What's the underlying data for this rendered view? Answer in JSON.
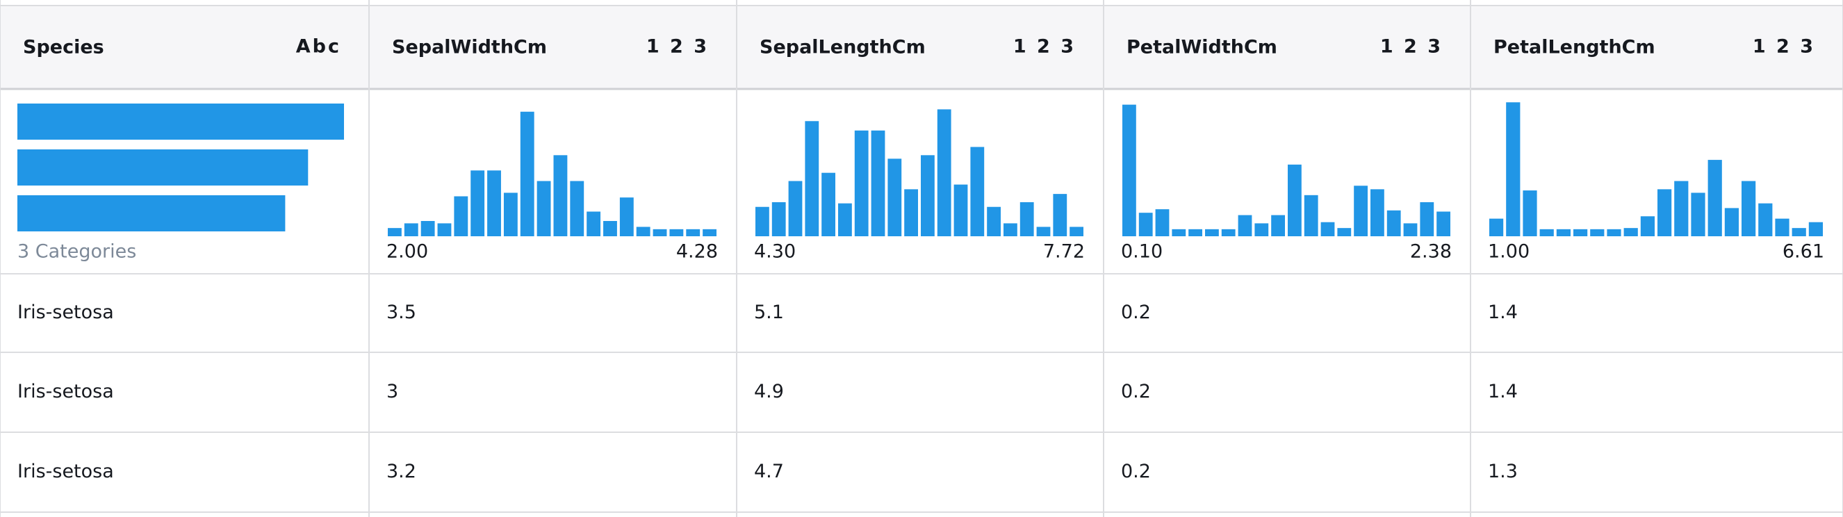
{
  "header": {
    "columns": [
      {
        "name": "Species",
        "type": "Abc"
      },
      {
        "name": "SepalWidthCm",
        "type": "1 2 3"
      },
      {
        "name": "SepalLengthCm",
        "type": "1 2 3"
      },
      {
        "name": "PetalWidthCm",
        "type": "1 2 3"
      },
      {
        "name": "PetalLengthCm",
        "type": "1 2 3"
      }
    ]
  },
  "summary": {
    "species": {
      "bars": [
        100,
        89,
        82
      ],
      "label": "3 Categories"
    },
    "histograms": [
      {
        "counts": [
          7,
          11,
          13,
          11,
          34,
          56,
          56,
          37,
          106,
          47,
          69,
          47,
          21,
          13,
          33,
          8,
          6,
          6,
          6,
          6
        ],
        "min": "2.00",
        "max": "4.28"
      },
      {
        "counts": [
          25,
          29,
          47,
          98,
          54,
          28,
          90,
          90,
          66,
          40,
          69,
          108,
          44,
          76,
          25,
          11,
          29,
          8,
          36,
          8
        ],
        "min": "4.30",
        "max": "7.72"
      },
      {
        "counts": [
          112,
          20,
          23,
          6,
          6,
          6,
          6,
          18,
          11,
          18,
          61,
          35,
          12,
          7,
          43,
          40,
          22,
          11,
          29,
          21
        ],
        "min": "0.10",
        "max": "2.38"
      },
      {
        "counts": [
          15,
          114,
          39,
          6,
          6,
          6,
          6,
          6,
          7,
          17,
          40,
          47,
          37,
          65,
          24,
          47,
          28,
          15,
          7,
          12
        ],
        "min": "1.00",
        "max": "6.61"
      }
    ]
  },
  "rows": [
    [
      "Iris-setosa",
      "3.5",
      "5.1",
      "0.2",
      "1.4"
    ],
    [
      "Iris-setosa",
      "3",
      "4.9",
      "0.2",
      "1.4"
    ],
    [
      "Iris-setosa",
      "3.2",
      "4.7",
      "0.2",
      "1.3"
    ]
  ]
}
